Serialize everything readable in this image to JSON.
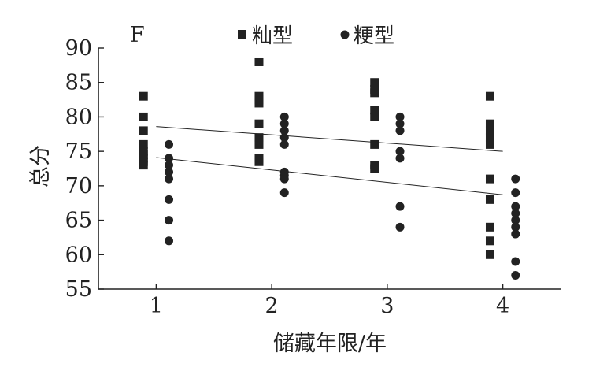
{
  "chart_data": {
    "type": "scatter",
    "panel_label": "F",
    "xlabel": "储藏年限/年",
    "ylabel": "总分",
    "xlim": [
      0.5,
      4.5
    ],
    "ylim": [
      55,
      90
    ],
    "xticks": [
      "1",
      "2",
      "3",
      "4"
    ],
    "yticks": [
      "55",
      "60",
      "65",
      "70",
      "75",
      "80",
      "85",
      "90"
    ],
    "grid": false,
    "legend_position": "top",
    "series": [
      {
        "name": "籼型",
        "marker": "square",
        "color": "#222222",
        "points": [
          {
            "x": 1,
            "y": 83
          },
          {
            "x": 1,
            "y": 80
          },
          {
            "x": 1,
            "y": 78
          },
          {
            "x": 1,
            "y": 76
          },
          {
            "x": 1,
            "y": 75
          },
          {
            "x": 1,
            "y": 74.5
          },
          {
            "x": 1,
            "y": 74
          },
          {
            "x": 1,
            "y": 73.5
          },
          {
            "x": 1,
            "y": 73
          },
          {
            "x": 2,
            "y": 88
          },
          {
            "x": 2,
            "y": 83
          },
          {
            "x": 2,
            "y": 82.5
          },
          {
            "x": 2,
            "y": 82
          },
          {
            "x": 2,
            "y": 79
          },
          {
            "x": 2,
            "y": 77
          },
          {
            "x": 2,
            "y": 76
          },
          {
            "x": 2,
            "y": 74
          },
          {
            "x": 2,
            "y": 73.5
          },
          {
            "x": 3,
            "y": 85
          },
          {
            "x": 3,
            "y": 84
          },
          {
            "x": 3,
            "y": 83.5
          },
          {
            "x": 3,
            "y": 81
          },
          {
            "x": 3,
            "y": 80
          },
          {
            "x": 3,
            "y": 76
          },
          {
            "x": 3,
            "y": 73
          },
          {
            "x": 3,
            "y": 72.5
          },
          {
            "x": 4,
            "y": 83
          },
          {
            "x": 4,
            "y": 79
          },
          {
            "x": 4,
            "y": 78
          },
          {
            "x": 4,
            "y": 77
          },
          {
            "x": 4,
            "y": 76
          },
          {
            "x": 4,
            "y": 71
          },
          {
            "x": 4,
            "y": 68
          },
          {
            "x": 4,
            "y": 64
          },
          {
            "x": 4,
            "y": 62
          },
          {
            "x": 4,
            "y": 60
          }
        ],
        "trend": {
          "x1": 1,
          "y1": 78.6,
          "x2": 4,
          "y2": 75
        }
      },
      {
        "name": "粳型",
        "marker": "circle",
        "color": "#222222",
        "points": [
          {
            "x": 1,
            "y": 76
          },
          {
            "x": 1,
            "y": 74
          },
          {
            "x": 1,
            "y": 73
          },
          {
            "x": 1,
            "y": 72
          },
          {
            "x": 1,
            "y": 71
          },
          {
            "x": 1,
            "y": 68
          },
          {
            "x": 1,
            "y": 65
          },
          {
            "x": 1,
            "y": 62
          },
          {
            "x": 2,
            "y": 80
          },
          {
            "x": 2,
            "y": 79
          },
          {
            "x": 2,
            "y": 78
          },
          {
            "x": 2,
            "y": 77
          },
          {
            "x": 2,
            "y": 76
          },
          {
            "x": 2,
            "y": 72
          },
          {
            "x": 2,
            "y": 71.5
          },
          {
            "x": 2,
            "y": 71
          },
          {
            "x": 2,
            "y": 69
          },
          {
            "x": 3,
            "y": 80
          },
          {
            "x": 3,
            "y": 79
          },
          {
            "x": 3,
            "y": 78
          },
          {
            "x": 3,
            "y": 75
          },
          {
            "x": 3,
            "y": 74
          },
          {
            "x": 3,
            "y": 67
          },
          {
            "x": 3,
            "y": 64
          },
          {
            "x": 4,
            "y": 71
          },
          {
            "x": 4,
            "y": 69
          },
          {
            "x": 4,
            "y": 67
          },
          {
            "x": 4,
            "y": 66
          },
          {
            "x": 4,
            "y": 65
          },
          {
            "x": 4,
            "y": 64
          },
          {
            "x": 4,
            "y": 63
          },
          {
            "x": 4,
            "y": 59
          },
          {
            "x": 4,
            "y": 57
          }
        ],
        "trend": {
          "x1": 1,
          "y1": 74.1,
          "x2": 4,
          "y2": 68.7
        }
      }
    ]
  }
}
